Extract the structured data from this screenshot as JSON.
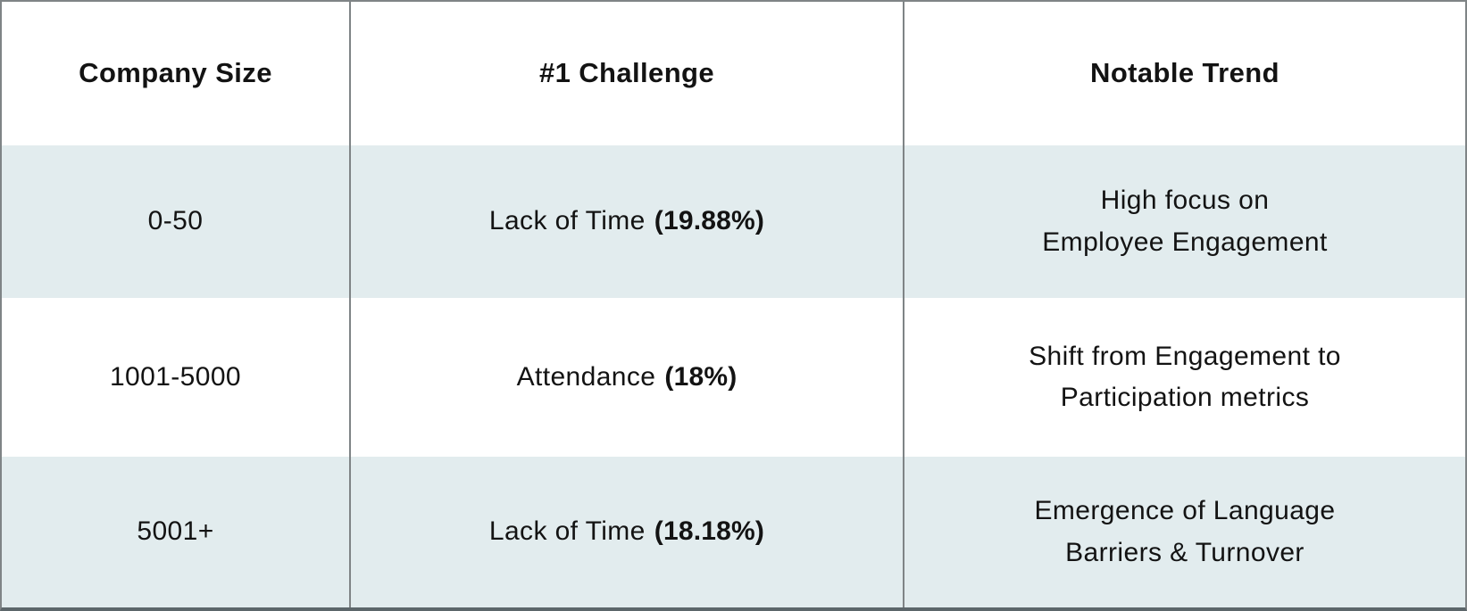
{
  "table": {
    "headers": {
      "company_size": "Company Size",
      "challenge": "#1 Challenge",
      "trend": "Notable Trend"
    },
    "rows": [
      {
        "company_size": "0-50",
        "challenge_label": "Lack of Time",
        "challenge_value": "(19.88%)",
        "trend_line1": "High focus on",
        "trend_line2": "Employee Engagement"
      },
      {
        "company_size": "1001-5000",
        "challenge_label": "Attendance",
        "challenge_value": "(18%)",
        "trend_line1": "Shift from Engagement to",
        "trend_line2": "Participation metrics"
      },
      {
        "company_size": "5001+",
        "challenge_label": "Lack of Time",
        "challenge_value": "(18.18%)",
        "trend_line1": "Emergence of Language",
        "trend_line2": "Barriers & Turnover"
      }
    ],
    "colors": {
      "alt_row_bg": "#e2ecee",
      "row_bg": "#ffffff",
      "grid_border": "#7f8486",
      "bottom_border": "#5c666a",
      "text": "#131313"
    }
  },
  "chart_data": {
    "type": "table",
    "title": "",
    "columns": [
      "Company Size",
      "#1 Challenge",
      "Notable Trend"
    ],
    "rows": [
      [
        "0-50",
        "Lack of Time (19.88%)",
        "High focus on Employee Engagement"
      ],
      [
        "1001-5000",
        "Attendance (18%)",
        "Shift from Engagement to Participation metrics"
      ],
      [
        "5001+",
        "Lack of Time (18.18%)",
        "Emergence of Language Barriers & Turnover"
      ]
    ],
    "challenge_percentages": [
      19.88,
      18,
      18.18
    ]
  }
}
